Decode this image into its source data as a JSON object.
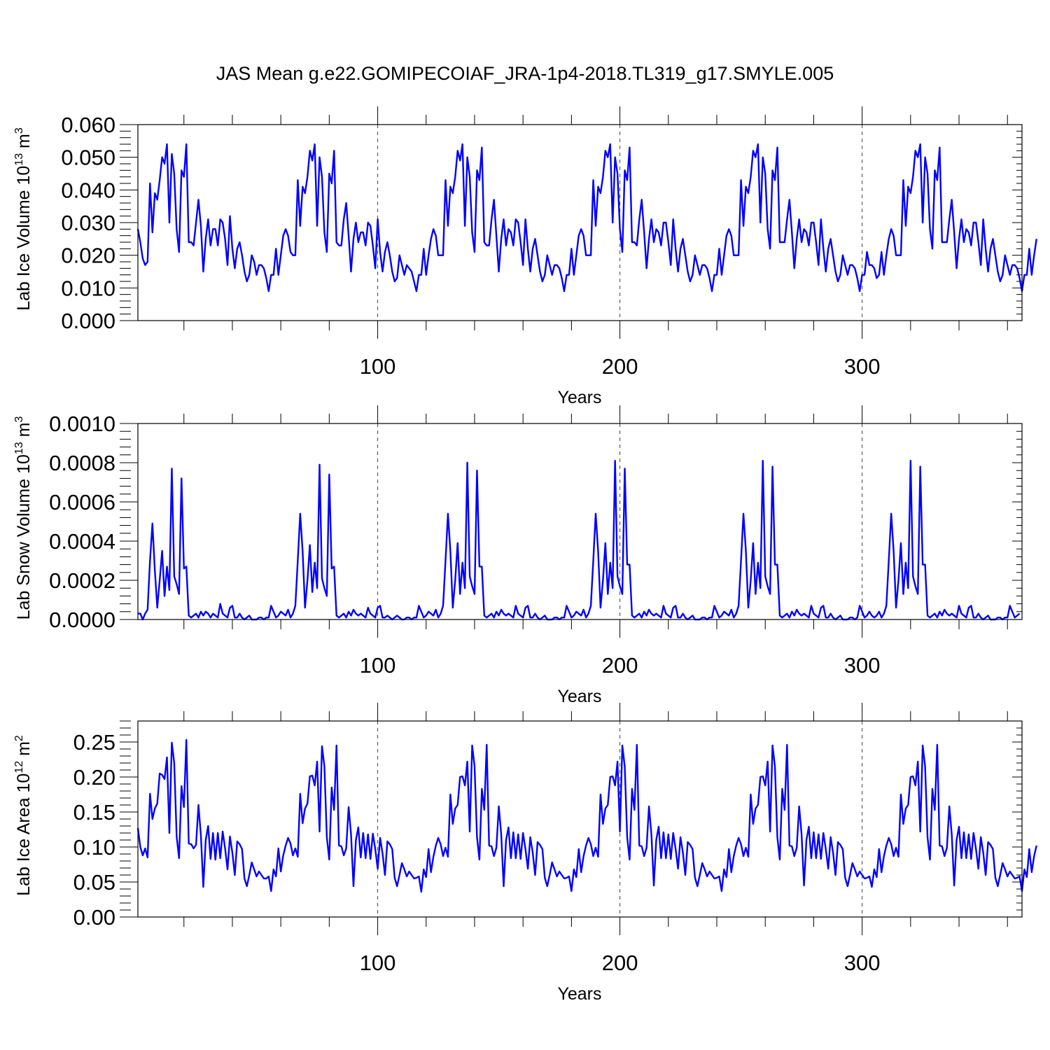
{
  "figure_title": "JAS Mean g.e22.GOMIPECOIAF_JRA-1p4-2018.TL319_g17.SMYLE.005",
  "colors": {
    "series": "#0000ff",
    "axes": "#000000"
  },
  "chart_data": [
    {
      "type": "line",
      "name": "lab-ice-volume",
      "ylabel": {
        "main": "Lab Ice Volume 10",
        "exp": "13",
        "unit": " m",
        "unit_exp": "3"
      },
      "xlabel": "Years",
      "xlim": [
        1,
        366
      ],
      "ylim": [
        0,
        0.06
      ],
      "yticks": [
        0.0,
        0.01,
        0.02,
        0.03,
        0.04,
        0.05,
        0.06
      ],
      "ytick_labels": [
        "0.000",
        "0.010",
        "0.020",
        "0.030",
        "0.040",
        "0.050",
        "0.060"
      ],
      "xticks": [
        100,
        200,
        300
      ],
      "xtick_labels": [
        "100",
        "200",
        "300"
      ],
      "grid_x": [
        100,
        200,
        300
      ],
      "values": [
        0.028,
        0.024,
        0.019,
        0.017,
        0.018,
        0.042,
        0.027,
        0.039,
        0.037,
        0.043,
        0.05,
        0.048,
        0.054,
        0.03,
        0.051,
        0.045,
        0.028,
        0.021,
        0.046,
        0.044,
        0.054,
        0.024,
        0.024,
        0.023,
        0.03,
        0.037,
        0.029,
        0.015,
        0.025,
        0.031,
        0.023,
        0.028,
        0.028,
        0.023,
        0.031,
        0.03,
        0.025,
        0.017,
        0.032,
        0.022,
        0.016,
        0.022,
        0.024,
        0.02,
        0.015,
        0.012,
        0.014,
        0.02,
        0.018,
        0.014,
        0.017,
        0.017,
        0.016,
        0.013,
        0.009,
        0.014,
        0.014,
        0.022,
        0.014,
        0.02,
        0.026,
        0.028,
        0.026,
        0.021,
        0.02,
        0.02,
        0.043,
        0.029,
        0.041,
        0.039,
        0.044,
        0.052,
        0.049,
        0.054,
        0.029,
        0.05,
        0.044,
        0.027,
        0.021,
        0.045,
        0.042,
        0.052,
        0.024,
        0.023,
        0.023,
        0.031,
        0.036,
        0.026,
        0.015,
        0.025,
        0.03,
        0.024,
        0.027,
        0.027,
        0.023,
        0.03,
        0.029,
        0.023,
        0.016,
        0.031,
        0.021,
        0.015,
        0.021,
        0.024,
        0.02,
        0.015,
        0.012,
        0.013,
        0.02,
        0.017,
        0.014,
        0.017,
        0.016,
        0.015,
        0.012,
        0.009,
        0.014,
        0.014,
        0.022,
        0.014,
        0.02,
        0.025,
        0.028,
        0.026,
        0.02,
        0.02,
        0.02,
        0.043,
        0.029,
        0.041,
        0.039,
        0.044,
        0.052,
        0.049,
        0.054,
        0.029,
        0.05,
        0.044,
        0.027,
        0.021,
        0.046,
        0.043,
        0.053,
        0.024,
        0.023,
        0.023,
        0.031,
        0.037,
        0.026,
        0.015,
        0.025,
        0.031,
        0.023,
        0.028,
        0.027,
        0.023,
        0.031,
        0.03,
        0.024,
        0.017,
        0.031,
        0.022,
        0.015,
        0.022,
        0.025,
        0.02,
        0.015,
        0.012,
        0.014,
        0.02,
        0.017,
        0.014,
        0.017,
        0.017,
        0.016,
        0.013,
        0.009,
        0.014,
        0.014,
        0.022,
        0.014,
        0.02,
        0.026,
        0.028,
        0.026,
        0.02,
        0.02,
        0.02,
        0.043,
        0.029,
        0.041,
        0.039,
        0.044,
        0.052,
        0.05,
        0.054,
        0.03,
        0.05,
        0.045,
        0.028,
        0.021,
        0.046,
        0.043,
        0.053,
        0.024,
        0.024,
        0.023,
        0.031,
        0.037,
        0.027,
        0.016,
        0.025,
        0.031,
        0.024,
        0.028,
        0.027,
        0.023,
        0.03,
        0.03,
        0.024,
        0.017,
        0.031,
        0.022,
        0.015,
        0.022,
        0.025,
        0.02,
        0.015,
        0.012,
        0.014,
        0.02,
        0.017,
        0.014,
        0.017,
        0.017,
        0.016,
        0.013,
        0.009,
        0.014,
        0.014,
        0.022,
        0.014,
        0.02,
        0.026,
        0.028,
        0.026,
        0.02,
        0.02,
        0.02,
        0.043,
        0.029,
        0.041,
        0.039,
        0.044,
        0.052,
        0.05,
        0.054,
        0.03,
        0.05,
        0.045,
        0.028,
        0.022,
        0.046,
        0.043,
        0.053,
        0.024,
        0.024,
        0.024,
        0.031,
        0.037,
        0.027,
        0.016,
        0.025,
        0.031,
        0.024,
        0.028,
        0.027,
        0.023,
        0.03,
        0.03,
        0.024,
        0.017,
        0.031,
        0.022,
        0.015,
        0.022,
        0.025,
        0.02,
        0.015,
        0.012,
        0.014,
        0.02,
        0.017,
        0.014,
        0.017,
        0.017,
        0.016,
        0.013,
        0.009,
        0.014,
        0.014,
        0.021,
        0.017,
        0.017,
        0.016,
        0.013,
        0.014,
        0.021,
        0.014,
        0.02,
        0.025,
        0.028,
        0.026,
        0.02,
        0.02,
        0.02,
        0.043,
        0.029,
        0.041,
        0.039,
        0.044,
        0.052,
        0.05,
        0.054,
        0.03,
        0.05,
        0.045,
        0.028,
        0.022,
        0.046,
        0.043,
        0.053,
        0.024,
        0.024,
        0.024,
        0.031,
        0.037,
        0.027,
        0.016,
        0.025,
        0.031,
        0.024,
        0.028,
        0.027,
        0.023,
        0.03,
        0.03,
        0.024,
        0.017,
        0.031,
        0.022,
        0.015,
        0.022,
        0.025,
        0.02,
        0.015,
        0.012,
        0.014,
        0.02,
        0.017,
        0.014,
        0.017,
        0.017,
        0.016,
        0.013,
        0.009,
        0.014,
        0.014,
        0.022,
        0.014,
        0.02,
        0.025
      ]
    },
    {
      "type": "line",
      "name": "lab-snow-volume",
      "ylabel": {
        "main": "Lab Snow Volume 10",
        "exp": "13",
        "unit": " m",
        "unit_exp": "3"
      },
      "xlabel": "Years",
      "xlim": [
        1,
        366
      ],
      "ylim": [
        0,
        0.001
      ],
      "yticks": [
        0.0,
        0.0002,
        0.0004,
        0.0006,
        0.0008,
        0.001
      ],
      "ytick_labels": [
        "0.0000",
        "0.0002",
        "0.0004",
        "0.0006",
        "0.0008",
        "0.0010"
      ],
      "xticks": [
        100,
        200,
        300
      ],
      "xtick_labels": [
        "100",
        "200",
        "300"
      ],
      "grid_x": [
        100,
        200,
        300
      ],
      "values": [
        3e-05,
        3e-05,
        0.0,
        3e-05,
        5e-05,
        0.0003,
        0.00049,
        0.00025,
        6e-05,
        0.0002,
        0.00035,
        0.00012,
        0.00027,
        0.00015,
        0.00077,
        0.00022,
        0.00018,
        0.00013,
        0.00072,
        0.00026,
        0.00027,
        2e-05,
        1e-05,
        2e-05,
        3e-05,
        1e-05,
        4e-05,
        2e-05,
        4e-05,
        3e-05,
        1e-05,
        3e-05,
        2e-05,
        1e-05,
        8e-05,
        3e-05,
        2e-05,
        1e-05,
        6e-05,
        7e-05,
        1e-05,
        1e-05,
        3e-05,
        1e-05,
        0.0,
        1e-05,
        2e-05,
        0.0,
        0.0,
        0.0,
        1e-05,
        1e-05,
        0.0,
        1e-05,
        1e-05,
        7e-05,
        4e-05,
        1e-05,
        2e-05,
        4e-05,
        3e-05,
        2e-05,
        5e-05,
        1e-05,
        3e-05,
        7e-05,
        0.0003,
        0.00054,
        0.00035,
        6e-05,
        0.0002,
        0.00038,
        0.00014,
        0.00029,
        0.00016,
        0.00079,
        0.00021,
        0.00016,
        0.00012,
        0.00074,
        0.00026,
        0.00027,
        2e-05,
        1e-05,
        2e-05,
        3e-05,
        1e-05,
        4e-05,
        2e-05,
        5e-05,
        3e-05,
        2e-05,
        3e-05,
        2e-05,
        1e-05,
        6e-05,
        3e-05,
        2e-05,
        1e-05,
        6e-05,
        7e-05,
        1e-05,
        1e-05,
        2e-05,
        1e-05,
        0.0,
        1e-05,
        2e-05,
        1e-05,
        0.0,
        0.0,
        1e-05,
        1e-05,
        0.0,
        1e-05,
        1e-05,
        7e-05,
        4e-05,
        1e-05,
        2e-05,
        4e-05,
        3e-05,
        2e-05,
        5e-05,
        1e-05,
        3e-05,
        7e-05,
        0.0003,
        0.00054,
        0.00035,
        6e-05,
        0.0002,
        0.00039,
        0.00013,
        0.00029,
        0.00016,
        0.0008,
        0.00022,
        0.00017,
        0.00013,
        0.00076,
        0.00027,
        0.00027,
        2e-05,
        1e-05,
        2e-05,
        3e-05,
        1e-05,
        4e-05,
        2e-05,
        5e-05,
        3e-05,
        2e-05,
        3e-05,
        2e-05,
        1e-05,
        7e-05,
        3e-05,
        2e-05,
        1e-05,
        6e-05,
        7e-05,
        1e-05,
        1e-05,
        3e-05,
        1e-05,
        0.0,
        1e-05,
        2e-05,
        0.0,
        0.0,
        0.0,
        1e-05,
        1e-05,
        0.0,
        1e-05,
        1e-05,
        7e-05,
        4e-05,
        1e-05,
        2e-05,
        4e-05,
        3e-05,
        2e-05,
        5e-05,
        1e-05,
        3e-05,
        7e-05,
        0.0003,
        0.00054,
        0.00035,
        6e-05,
        0.0002,
        0.00039,
        0.00013,
        0.00029,
        0.00016,
        0.00081,
        0.00022,
        0.00017,
        0.00013,
        0.00077,
        0.00028,
        0.00028,
        2e-05,
        1e-05,
        2e-05,
        3e-05,
        1e-05,
        4e-05,
        2e-05,
        5e-05,
        3e-05,
        2e-05,
        3e-05,
        2e-05,
        1e-05,
        7e-05,
        3e-05,
        2e-05,
        1e-05,
        6e-05,
        7e-05,
        1e-05,
        1e-05,
        3e-05,
        1e-05,
        0.0,
        1e-05,
        2e-05,
        0.0,
        0.0,
        0.0,
        1e-05,
        1e-05,
        0.0,
        1e-05,
        1e-05,
        7e-05,
        4e-05,
        1e-05,
        2e-05,
        4e-05,
        3e-05,
        2e-05,
        5e-05,
        1e-05,
        3e-05,
        7e-05,
        0.0003,
        0.00054,
        0.00035,
        6e-05,
        0.0002,
        0.00039,
        0.00013,
        0.00029,
        0.00016,
        0.00081,
        0.00022,
        0.00017,
        0.00013,
        0.00078,
        0.00028,
        0.00028,
        2e-05,
        1e-05,
        2e-05,
        3e-05,
        1e-05,
        4e-05,
        2e-05,
        5e-05,
        3e-05,
        2e-05,
        3e-05,
        2e-05,
        1e-05,
        7e-05,
        3e-05,
        2e-05,
        1e-05,
        6e-05,
        7e-05,
        1e-05,
        1e-05,
        3e-05,
        1e-05,
        0.0,
        1e-05,
        2e-05,
        0.0,
        0.0,
        0.0,
        1e-05,
        1e-05,
        0.0,
        1e-05,
        7e-05,
        4e-05,
        1e-05,
        2e-05,
        4e-05,
        2e-05,
        1e-05,
        2e-05,
        4e-05,
        1e-05,
        3e-05,
        7e-05,
        0.0003,
        0.00054,
        0.00035,
        6e-05,
        0.0002,
        0.00039,
        0.00013,
        0.00029,
        0.00016,
        0.00081,
        0.00022,
        0.00017,
        0.00013,
        0.00078,
        0.00028,
        0.00028,
        2e-05,
        1e-05,
        2e-05,
        3e-05,
        1e-05,
        4e-05,
        2e-05,
        5e-05,
        3e-05,
        2e-05,
        3e-05,
        2e-05,
        1e-05,
        7e-05,
        3e-05,
        2e-05,
        1e-05,
        6e-05,
        7e-05,
        1e-05,
        1e-05,
        3e-05,
        1e-05,
        0.0,
        1e-05,
        2e-05,
        0.0,
        0.0,
        0.0,
        1e-05,
        1e-05,
        0.0,
        1e-05,
        1e-05,
        7e-05,
        4e-05,
        1e-05,
        2e-05,
        3e-05
      ]
    },
    {
      "type": "line",
      "name": "lab-ice-area",
      "ylabel": {
        "main": "Lab Ice Area 10",
        "exp": "12",
        "unit": " m",
        "unit_exp": "2"
      },
      "xlabel": "Years",
      "xlim": [
        1,
        366
      ],
      "ylim": [
        0,
        0.28
      ],
      "yticks": [
        0.0,
        0.05,
        0.1,
        0.15,
        0.2,
        0.25
      ],
      "ytick_labels": [
        "0.00",
        "0.05",
        "0.10",
        "0.15",
        "0.20",
        "0.25"
      ],
      "xticks": [
        100,
        200,
        300
      ],
      "xtick_labels": [
        "100",
        "200",
        "300"
      ],
      "grid_x": [
        100,
        200,
        300
      ],
      "values": [
        0.127,
        0.1,
        0.088,
        0.098,
        0.085,
        0.176,
        0.14,
        0.155,
        0.162,
        0.205,
        0.203,
        0.197,
        0.228,
        0.12,
        0.249,
        0.22,
        0.115,
        0.084,
        0.187,
        0.157,
        0.253,
        0.105,
        0.104,
        0.098,
        0.103,
        0.16,
        0.117,
        0.043,
        0.11,
        0.13,
        0.083,
        0.12,
        0.082,
        0.12,
        0.084,
        0.122,
        0.098,
        0.068,
        0.115,
        0.092,
        0.06,
        0.108,
        0.104,
        0.097,
        0.055,
        0.044,
        0.06,
        0.078,
        0.068,
        0.058,
        0.065,
        0.06,
        0.055,
        0.055,
        0.058,
        0.037,
        0.068,
        0.058,
        0.098,
        0.065,
        0.088,
        0.102,
        0.113,
        0.105,
        0.088,
        0.098,
        0.086,
        0.176,
        0.134,
        0.155,
        0.162,
        0.201,
        0.202,
        0.188,
        0.222,
        0.122,
        0.244,
        0.215,
        0.114,
        0.082,
        0.185,
        0.153,
        0.245,
        0.102,
        0.101,
        0.088,
        0.098,
        0.157,
        0.118,
        0.044,
        0.11,
        0.128,
        0.085,
        0.12,
        0.084,
        0.118,
        0.083,
        0.119,
        0.097,
        0.069,
        0.113,
        0.091,
        0.06,
        0.108,
        0.104,
        0.097,
        0.056,
        0.044,
        0.06,
        0.077,
        0.068,
        0.058,
        0.065,
        0.06,
        0.055,
        0.056,
        0.058,
        0.036,
        0.068,
        0.057,
        0.097,
        0.064,
        0.086,
        0.102,
        0.113,
        0.104,
        0.087,
        0.099,
        0.086,
        0.175,
        0.133,
        0.155,
        0.16,
        0.2,
        0.201,
        0.188,
        0.222,
        0.122,
        0.245,
        0.215,
        0.114,
        0.082,
        0.183,
        0.153,
        0.246,
        0.102,
        0.101,
        0.087,
        0.099,
        0.158,
        0.118,
        0.044,
        0.11,
        0.128,
        0.084,
        0.121,
        0.084,
        0.118,
        0.083,
        0.12,
        0.097,
        0.069,
        0.114,
        0.092,
        0.06,
        0.107,
        0.103,
        0.097,
        0.056,
        0.044,
        0.06,
        0.078,
        0.068,
        0.058,
        0.065,
        0.06,
        0.055,
        0.056,
        0.058,
        0.037,
        0.068,
        0.057,
        0.097,
        0.064,
        0.087,
        0.102,
        0.113,
        0.104,
        0.087,
        0.099,
        0.086,
        0.175,
        0.133,
        0.155,
        0.16,
        0.2,
        0.201,
        0.188,
        0.222,
        0.122,
        0.245,
        0.215,
        0.114,
        0.082,
        0.183,
        0.153,
        0.246,
        0.102,
        0.101,
        0.087,
        0.099,
        0.158,
        0.118,
        0.045,
        0.11,
        0.129,
        0.084,
        0.121,
        0.084,
        0.118,
        0.083,
        0.12,
        0.097,
        0.069,
        0.114,
        0.092,
        0.06,
        0.107,
        0.103,
        0.097,
        0.056,
        0.044,
        0.06,
        0.077,
        0.068,
        0.058,
        0.065,
        0.06,
        0.055,
        0.056,
        0.058,
        0.037,
        0.068,
        0.057,
        0.097,
        0.064,
        0.087,
        0.102,
        0.113,
        0.104,
        0.087,
        0.099,
        0.086,
        0.175,
        0.133,
        0.155,
        0.16,
        0.2,
        0.201,
        0.188,
        0.222,
        0.122,
        0.245,
        0.215,
        0.114,
        0.082,
        0.183,
        0.153,
        0.246,
        0.102,
        0.101,
        0.087,
        0.099,
        0.158,
        0.118,
        0.045,
        0.11,
        0.129,
        0.084,
        0.121,
        0.084,
        0.118,
        0.083,
        0.12,
        0.097,
        0.069,
        0.114,
        0.092,
        0.06,
        0.107,
        0.103,
        0.097,
        0.056,
        0.044,
        0.06,
        0.077,
        0.068,
        0.058,
        0.065,
        0.06,
        0.055,
        0.056,
        0.058,
        0.043,
        0.068,
        0.057,
        0.097,
        0.064,
        0.087,
        0.102,
        0.113,
        0.104,
        0.087,
        0.099,
        0.086,
        0.175,
        0.133,
        0.155,
        0.16,
        0.2,
        0.201,
        0.188,
        0.222,
        0.122,
        0.245,
        0.215,
        0.114,
        0.082,
        0.183,
        0.153,
        0.246,
        0.102,
        0.101,
        0.087,
        0.099,
        0.158,
        0.118,
        0.045,
        0.11,
        0.129,
        0.084,
        0.121,
        0.084,
        0.118,
        0.083,
        0.12,
        0.097,
        0.069,
        0.114,
        0.092,
        0.06,
        0.107,
        0.103,
        0.097,
        0.056,
        0.044,
        0.06,
        0.077,
        0.068,
        0.058,
        0.065,
        0.06,
        0.055,
        0.056,
        0.058,
        0.037,
        0.068,
        0.057,
        0.097,
        0.064,
        0.087,
        0.102
      ]
    }
  ]
}
